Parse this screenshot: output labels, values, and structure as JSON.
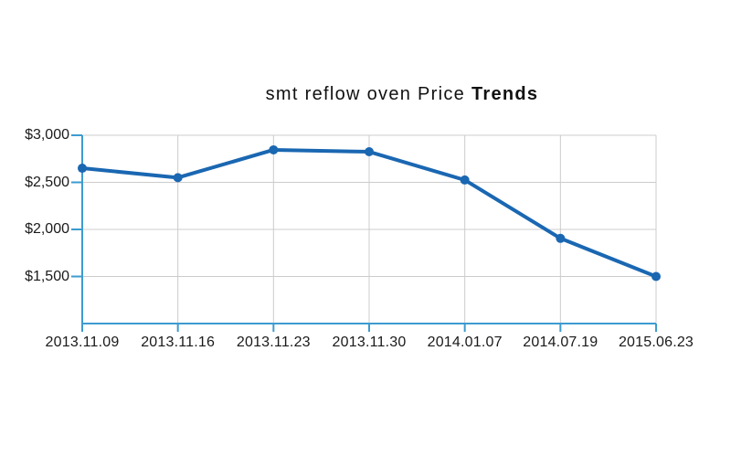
{
  "chart_data": {
    "type": "line",
    "title_regular": "smt reflow oven Price ",
    "title_bold": "Trends",
    "categories": [
      "2013.11.09",
      "2013.11.16",
      "2013.11.23",
      "2013.11.30",
      "2014.01.07",
      "2014.07.19",
      "2015.06.23"
    ],
    "series": [
      {
        "name": "Price",
        "values": [
          2650,
          2550,
          2845,
          2825,
          2525,
          1905,
          1500
        ]
      }
    ],
    "xlabel": "",
    "ylabel": "",
    "ylim": [
      1000,
      3000
    ],
    "y_ticks": [
      {
        "value": 3000,
        "label": "$3,000"
      },
      {
        "value": 2500,
        "label": "$2,500"
      },
      {
        "value": 2000,
        "label": "$2,000"
      },
      {
        "value": 1500,
        "label": "$1,500"
      }
    ],
    "grid": true,
    "legend_position": "none",
    "colors": {
      "line": "#1a67b2",
      "axis": "#3d9bd0",
      "grid": "#cccccc",
      "text": "#1a1a1a",
      "background": "#ffffff"
    }
  }
}
